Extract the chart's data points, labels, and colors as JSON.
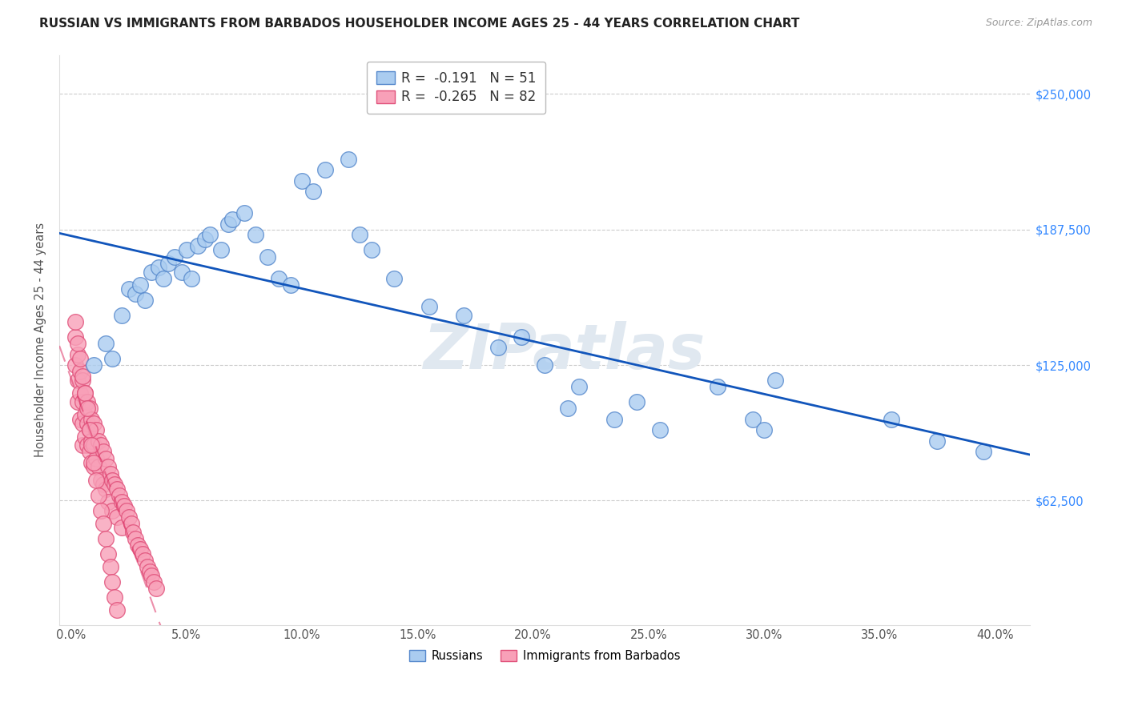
{
  "title": "RUSSIAN VS IMMIGRANTS FROM BARBADOS HOUSEHOLDER INCOME AGES 25 - 44 YEARS CORRELATION CHART",
  "source": "Source: ZipAtlas.com",
  "xlabel_ticks": [
    "0.0%",
    "5.0%",
    "10.0%",
    "15.0%",
    "20.0%",
    "25.0%",
    "30.0%",
    "35.0%",
    "40.0%"
  ],
  "xlabel_vals": [
    0,
    0.05,
    0.1,
    0.15,
    0.2,
    0.25,
    0.3,
    0.35,
    0.4
  ],
  "ylabel_ticks": [
    "$62,500",
    "$125,000",
    "$187,500",
    "$250,000"
  ],
  "ylabel_vals": [
    62500,
    125000,
    187500,
    250000
  ],
  "ylabel_label": "Householder Income Ages 25 - 44 years",
  "xlim": [
    -0.005,
    0.415
  ],
  "ylim": [
    5000,
    268000
  ],
  "watermark": "ZIPatlas",
  "legend_russian_R": "-0.191",
  "legend_russian_N": "51",
  "legend_barbados_R": "-0.265",
  "legend_barbados_N": "82",
  "russian_color": "#aaccf0",
  "russian_edge": "#5588cc",
  "barbados_color": "#f8a0b8",
  "barbados_edge": "#e0507a",
  "russian_line_color": "#1155bb",
  "barbados_line_color": "#dd3366",
  "russian_x": [
    0.01,
    0.015,
    0.018,
    0.022,
    0.025,
    0.028,
    0.03,
    0.032,
    0.035,
    0.038,
    0.04,
    0.042,
    0.045,
    0.048,
    0.05,
    0.052,
    0.055,
    0.058,
    0.06,
    0.065,
    0.068,
    0.07,
    0.075,
    0.08,
    0.085,
    0.09,
    0.095,
    0.1,
    0.105,
    0.11,
    0.12,
    0.125,
    0.13,
    0.14,
    0.155,
    0.17,
    0.185,
    0.195,
    0.205,
    0.215,
    0.22,
    0.235,
    0.245,
    0.255,
    0.28,
    0.295,
    0.3,
    0.305,
    0.355,
    0.375,
    0.395
  ],
  "russian_y": [
    125000,
    135000,
    128000,
    148000,
    160000,
    158000,
    162000,
    155000,
    168000,
    170000,
    165000,
    172000,
    175000,
    168000,
    178000,
    165000,
    180000,
    183000,
    185000,
    178000,
    190000,
    192000,
    195000,
    185000,
    175000,
    165000,
    162000,
    210000,
    205000,
    215000,
    220000,
    185000,
    178000,
    165000,
    152000,
    148000,
    133000,
    138000,
    125000,
    105000,
    115000,
    100000,
    108000,
    95000,
    115000,
    100000,
    95000,
    118000,
    100000,
    90000,
    85000
  ],
  "barbados_x": [
    0.002,
    0.002,
    0.003,
    0.003,
    0.003,
    0.004,
    0.004,
    0.004,
    0.005,
    0.005,
    0.005,
    0.005,
    0.006,
    0.006,
    0.006,
    0.007,
    0.007,
    0.007,
    0.008,
    0.008,
    0.008,
    0.009,
    0.009,
    0.009,
    0.01,
    0.01,
    0.01,
    0.011,
    0.011,
    0.012,
    0.012,
    0.013,
    0.013,
    0.014,
    0.014,
    0.015,
    0.015,
    0.016,
    0.016,
    0.017,
    0.018,
    0.018,
    0.019,
    0.02,
    0.02,
    0.021,
    0.022,
    0.022,
    0.023,
    0.024,
    0.025,
    0.026,
    0.027,
    0.028,
    0.029,
    0.03,
    0.031,
    0.032,
    0.033,
    0.034,
    0.035,
    0.036,
    0.037,
    0.002,
    0.003,
    0.004,
    0.005,
    0.006,
    0.007,
    0.008,
    0.009,
    0.01,
    0.011,
    0.012,
    0.013,
    0.014,
    0.015,
    0.016,
    0.017,
    0.018,
    0.019,
    0.02
  ],
  "barbados_y": [
    138000,
    125000,
    130000,
    118000,
    108000,
    122000,
    112000,
    100000,
    118000,
    108000,
    98000,
    88000,
    112000,
    102000,
    92000,
    108000,
    98000,
    88000,
    105000,
    95000,
    85000,
    100000,
    90000,
    80000,
    98000,
    88000,
    78000,
    95000,
    82000,
    90000,
    78000,
    88000,
    72000,
    85000,
    70000,
    82000,
    68000,
    78000,
    62000,
    75000,
    72000,
    58000,
    70000,
    68000,
    55000,
    65000,
    62000,
    50000,
    60000,
    58000,
    55000,
    52000,
    48000,
    45000,
    42000,
    40000,
    38000,
    35000,
    32000,
    30000,
    28000,
    25000,
    22000,
    145000,
    135000,
    128000,
    120000,
    112000,
    105000,
    95000,
    88000,
    80000,
    72000,
    65000,
    58000,
    52000,
    45000,
    38000,
    32000,
    25000,
    18000,
    12000
  ]
}
